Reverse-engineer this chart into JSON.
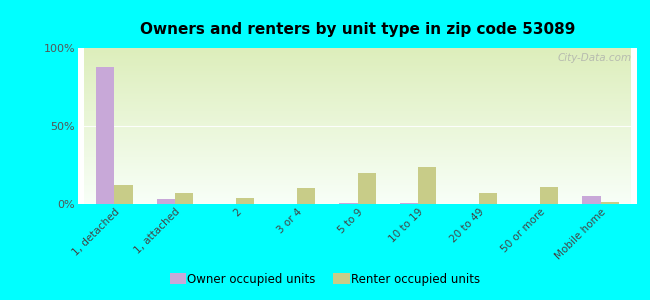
{
  "title": "Owners and renters by unit type in zip code 53089",
  "categories": [
    "1, detached",
    "1, attached",
    "2",
    "3 or 4",
    "5 to 9",
    "10 to 19",
    "20 to 49",
    "50 or more",
    "Mobile home"
  ],
  "owner_values": [
    88,
    3,
    0,
    0,
    0.5,
    0.5,
    0,
    0,
    5
  ],
  "renter_values": [
    12,
    7,
    4,
    10,
    20,
    24,
    7,
    11,
    1
  ],
  "owner_color": "#c8a8d8",
  "renter_color": "#c8cc88",
  "background_color": "#00ffff",
  "plot_bg_top": "#ddeebb",
  "plot_bg_bottom": "#f8fff8",
  "yticks": [
    0,
    50,
    100
  ],
  "ytick_labels": [
    "0%",
    "50%",
    "100%"
  ],
  "bar_width": 0.3,
  "watermark": "City-Data.com",
  "legend_owner": "Owner occupied units",
  "legend_renter": "Renter occupied units"
}
